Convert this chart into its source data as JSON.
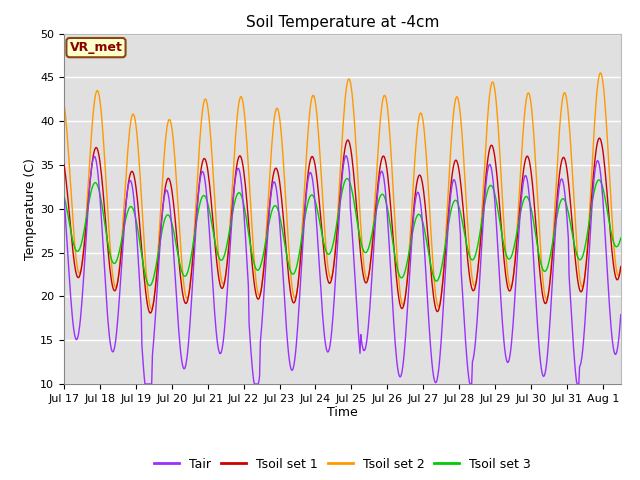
{
  "title": "Soil Temperature at -4cm",
  "xlabel": "Time",
  "ylabel": "Temperature (C)",
  "ylim": [
    10,
    50
  ],
  "xlim_days": [
    0,
    15.5
  ],
  "background_color": "#e0e0e0",
  "grid_color": "#ffffff",
  "annotation_text": "VR_met",
  "annotation_facecolor": "#ffffcc",
  "annotation_edgecolor": "#8B4513",
  "annotation_textcolor": "#8B0000",
  "line_colors": {
    "Tair": "#9b30ff",
    "Tsoil1": "#cc0000",
    "Tsoil2": "#ff9900",
    "Tsoil3": "#00cc00"
  },
  "legend_labels": [
    "Tair",
    "Tsoil set 1",
    "Tsoil set 2",
    "Tsoil set 3"
  ],
  "tick_labels": [
    "Jul 17",
    "Jul 18",
    "Jul 19",
    "Jul 20",
    "Jul 21",
    "Jul 22",
    "Jul 23",
    "Jul 24",
    "Jul 25",
    "Jul 26",
    "Jul 27",
    "Jul 28",
    "Jul 29",
    "Jul 30",
    "Jul 31",
    "Aug 1"
  ],
  "tick_positions": [
    0,
    1,
    2,
    3,
    4,
    5,
    6,
    7,
    8,
    9,
    10,
    11,
    12,
    13,
    14,
    15
  ]
}
